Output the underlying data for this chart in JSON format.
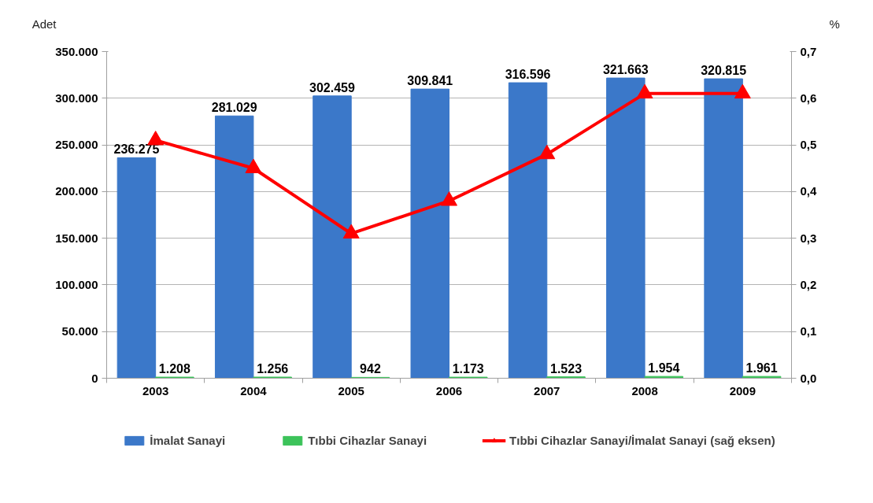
{
  "chart_data": {
    "type": "bar",
    "categories": [
      "2003",
      "2004",
      "2005",
      "2006",
      "2007",
      "2008",
      "2009"
    ],
    "ylabel": "Adet",
    "y2label": "%",
    "ylim": [
      0,
      350000
    ],
    "yticks": [
      {
        "value": 0,
        "label": "0"
      },
      {
        "value": 50000,
        "label": "50.000"
      },
      {
        "value": 100000,
        "label": "100.000"
      },
      {
        "value": 150000,
        "label": "150.000"
      },
      {
        "value": 200000,
        "label": "200.000"
      },
      {
        "value": 250000,
        "label": "250.000"
      },
      {
        "value": 300000,
        "label": "300.000"
      },
      {
        "value": 350000,
        "label": "350.000"
      }
    ],
    "y2lim": [
      0,
      0.7
    ],
    "y2ticks": [
      {
        "value": 0,
        "label": "0,0"
      },
      {
        "value": 0.1,
        "label": "0,1"
      },
      {
        "value": 0.2,
        "label": "0,2"
      },
      {
        "value": 0.3,
        "label": "0,3"
      },
      {
        "value": 0.4,
        "label": "0,4"
      },
      {
        "value": 0.5,
        "label": "0,5"
      },
      {
        "value": 0.6,
        "label": "0,6"
      },
      {
        "value": 0.7,
        "label": "0,7"
      }
    ],
    "grid": "y",
    "legend": "bottom",
    "series": [
      {
        "name": "İmalat Sanayi",
        "color": "#3b78c9",
        "values": [
          236275,
          281029,
          302459,
          309841,
          316596,
          321663,
          320815
        ],
        "value_labels": [
          "236.275",
          "281.029",
          "302.459",
          "309.841",
          "316.596",
          "321.663",
          "320.815"
        ]
      },
      {
        "name": "Tıbbi Cihazlar Sanayi",
        "color": "#3cc35a",
        "values": [
          1208,
          1256,
          942,
          1173,
          1523,
          1954,
          1961
        ],
        "value_labels": [
          "1.208",
          "1.256",
          "942",
          "1.173",
          "1.523",
          "1.954",
          "1.961"
        ]
      },
      {
        "name": "Tıbbi Cihazlar Sanayi/İmalat Sanayi (sağ eksen)",
        "type": "line",
        "axis": "y2",
        "color": "#ff0000",
        "marker": "triangle",
        "line_style": "solid",
        "values": [
          0.51,
          0.45,
          0.31,
          0.38,
          0.48,
          0.61,
          0.61
        ]
      }
    ]
  }
}
